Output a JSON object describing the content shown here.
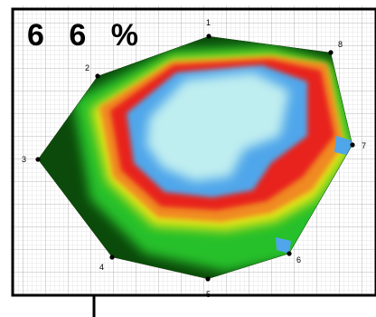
{
  "percentage": {
    "text": "6 6 %"
  },
  "points": [
    {
      "label": "1"
    },
    {
      "label": "2"
    },
    {
      "label": "3"
    },
    {
      "label": "4"
    },
    {
      "label": "5"
    },
    {
      "label": "6"
    },
    {
      "label": "7"
    },
    {
      "label": "8"
    }
  ],
  "colors": {
    "center": "#bfeef0",
    "inner_blue": "#4fa6ea",
    "ring_red": "#e8241c",
    "ring_orange": "#f08a20",
    "ring_yellow": "#e6e619",
    "outer_green": "#28c02a",
    "edge_dark_green": "#0b4a0a",
    "grid": "#bbbbbb",
    "frame": "#000000"
  }
}
